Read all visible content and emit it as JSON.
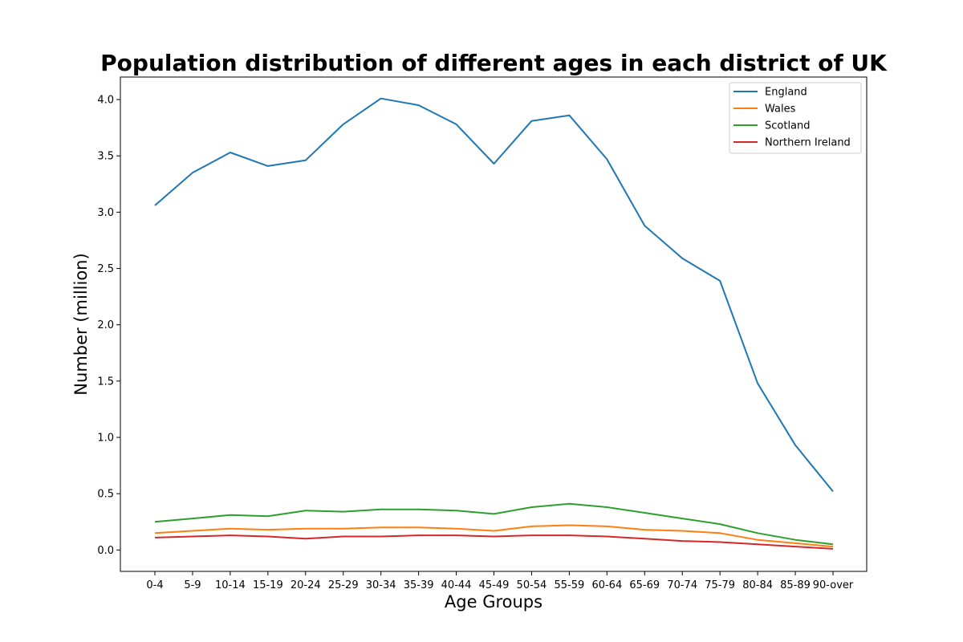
{
  "chart_data": {
    "type": "line",
    "title": "Population distribution of different ages in each district of UK",
    "xlabel": "Age Groups",
    "ylabel": "Number (million)",
    "categories": [
      "0-4",
      "5-9",
      "10-14",
      "15-19",
      "20-24",
      "25-29",
      "30-34",
      "35-39",
      "40-44",
      "45-49",
      "50-54",
      "55-59",
      "60-64",
      "65-69",
      "70-74",
      "75-79",
      "80-84",
      "85-89",
      "90-over"
    ],
    "ylim": [
      -0.19,
      4.2
    ],
    "yticks": [
      "0.0",
      "0.5",
      "1.0",
      "1.5",
      "2.0",
      "2.5",
      "3.0",
      "3.5",
      "4.0"
    ],
    "grid": false,
    "legend_position": "top-right",
    "series": [
      {
        "name": "England",
        "color": "#1f77b4",
        "values": [
          3.06,
          3.35,
          3.53,
          3.41,
          3.46,
          3.78,
          4.01,
          3.95,
          3.78,
          3.43,
          3.81,
          3.86,
          3.47,
          2.88,
          2.59,
          2.39,
          1.48,
          0.93,
          0.52
        ]
      },
      {
        "name": "Wales",
        "color": "#ff7f0e",
        "values": [
          0.15,
          0.17,
          0.19,
          0.18,
          0.19,
          0.19,
          0.2,
          0.2,
          0.19,
          0.17,
          0.21,
          0.22,
          0.21,
          0.18,
          0.17,
          0.15,
          0.09,
          0.06,
          0.03
        ]
      },
      {
        "name": "Scotland",
        "color": "#2ca02c",
        "values": [
          0.25,
          0.28,
          0.31,
          0.3,
          0.35,
          0.34,
          0.36,
          0.36,
          0.35,
          0.32,
          0.38,
          0.41,
          0.38,
          0.33,
          0.28,
          0.23,
          0.15,
          0.09,
          0.05
        ]
      },
      {
        "name": "Northern Ireland",
        "color": "#d62728",
        "values": [
          0.11,
          0.12,
          0.13,
          0.12,
          0.1,
          0.12,
          0.12,
          0.13,
          0.13,
          0.12,
          0.13,
          0.13,
          0.12,
          0.1,
          0.08,
          0.07,
          0.05,
          0.03,
          0.01
        ]
      }
    ]
  }
}
